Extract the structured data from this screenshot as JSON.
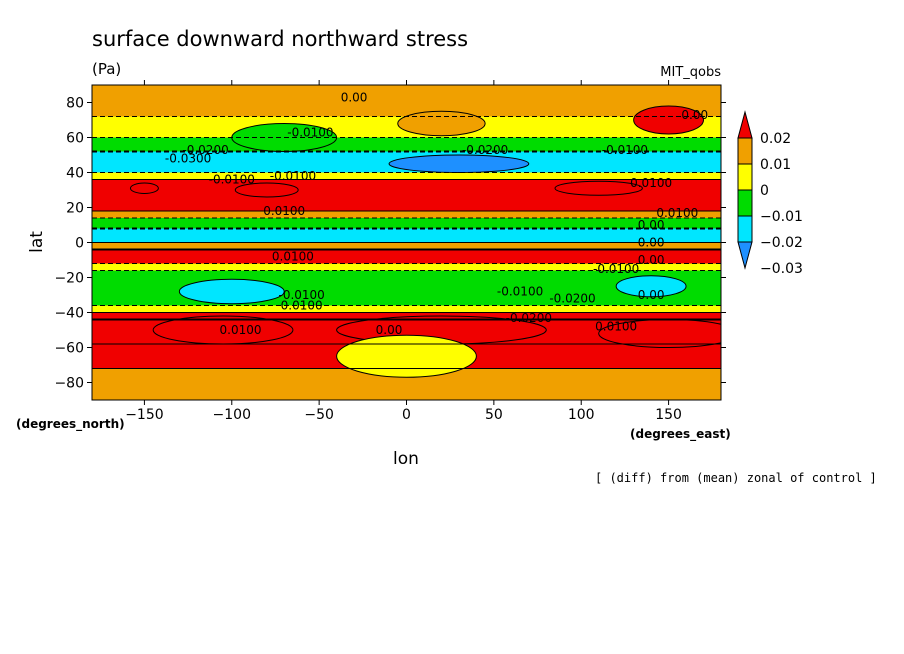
{
  "chart_data": {
    "type": "heatmap",
    "title": "surface downward northward stress",
    "units": "(Pa)",
    "model": "MIT_qobs",
    "xlabel": "lon",
    "ylabel": "lat",
    "x_unit_label": "(degrees_east)",
    "y_unit_label": "(degrees_north)",
    "footnote": "[ (diff) from (mean) zonal of control ]",
    "xlim": [
      -180,
      180
    ],
    "ylim": [
      -90,
      90
    ],
    "x_ticks": [
      -150,
      -100,
      -50,
      0,
      50,
      100,
      150
    ],
    "x_tick_labels": [
      "−150",
      "−100",
      "−50",
      "0",
      "50",
      "100",
      "150"
    ],
    "y_ticks": [
      -80,
      -60,
      -40,
      -20,
      0,
      20,
      40,
      60,
      80
    ],
    "y_tick_labels": [
      "−80",
      "−60",
      "−40",
      "−20",
      "0",
      "20",
      "40",
      "60",
      "80"
    ],
    "colorbar": {
      "levels": [
        0.02,
        0.01,
        0,
        -0.01,
        -0.02,
        -0.03
      ],
      "labels": [
        "0.02",
        "0.01",
        "0",
        "−0.01",
        "−0.02",
        "−0.03"
      ],
      "colors": [
        "#f00000",
        "#f0a000",
        "#ffff00",
        "#00dc00",
        "#00e6ff",
        "#1e90ff"
      ]
    },
    "zonal_bands": [
      {
        "lat": [
          -90,
          -72
        ],
        "value": 0.005
      },
      {
        "lat": [
          -72,
          -58
        ],
        "value": 0.015
      },
      {
        "lat": [
          -58,
          -44
        ],
        "value": 0.025
      },
      {
        "lat": [
          -44,
          -40
        ],
        "value": 0.015
      },
      {
        "lat": [
          -40,
          -36
        ],
        "value": -0.005
      },
      {
        "lat": [
          -36,
          -16
        ],
        "value": -0.015
      },
      {
        "lat": [
          -16,
          -12
        ],
        "value": -0.005
      },
      {
        "lat": [
          -12,
          -4
        ],
        "value": 0.025
      },
      {
        "lat": [
          -4,
          0
        ],
        "value": 0.005
      },
      {
        "lat": [
          0,
          8
        ],
        "value": -0.025
      },
      {
        "lat": [
          8,
          14
        ],
        "value": -0.015
      },
      {
        "lat": [
          14,
          18
        ],
        "value": 0.005
      },
      {
        "lat": [
          18,
          36
        ],
        "value": 0.015
      },
      {
        "lat": [
          36,
          40
        ],
        "value": -0.005
      },
      {
        "lat": [
          40,
          52
        ],
        "value": -0.025
      },
      {
        "lat": [
          52,
          60
        ],
        "value": -0.015
      },
      {
        "lat": [
          60,
          72
        ],
        "value": -0.005
      },
      {
        "lat": [
          72,
          90
        ],
        "value": 0.005
      }
    ],
    "anomalies": [
      {
        "lon": -105,
        "lat": -50,
        "rx": 40,
        "ry": 8,
        "value": 0.025
      },
      {
        "lon": 20,
        "lat": -50,
        "rx": 60,
        "ry": 8,
        "value": 0.025
      },
      {
        "lon": 150,
        "lat": -52,
        "rx": 40,
        "ry": 8,
        "value": 0.025
      },
      {
        "lon": -80,
        "lat": 30,
        "rx": 18,
        "ry": 4,
        "value": 0.025
      },
      {
        "lon": -150,
        "lat": 31,
        "rx": 8,
        "ry": 3,
        "value": 0.025
      },
      {
        "lon": 110,
        "lat": 31,
        "rx": 25,
        "ry": 4,
        "value": 0.025
      },
      {
        "lon": 30,
        "lat": 45,
        "rx": 40,
        "ry": 5,
        "value": -0.035
      },
      {
        "lon": -70,
        "lat": 60,
        "rx": 30,
        "ry": 8,
        "value": -0.015
      },
      {
        "lon": 20,
        "lat": 68,
        "rx": 25,
        "ry": 7,
        "value": 0.005
      },
      {
        "lon": 150,
        "lat": 70,
        "rx": 20,
        "ry": 8,
        "value": 0.015
      },
      {
        "lon": 0,
        "lat": -65,
        "rx": 40,
        "ry": 12,
        "value": -0.005
      },
      {
        "lon": -100,
        "lat": -28,
        "rx": 30,
        "ry": 7,
        "value": -0.025
      },
      {
        "lon": 140,
        "lat": -25,
        "rx": 20,
        "ry": 6,
        "value": -0.025
      }
    ],
    "contour_labels": [
      {
        "text": "0.00",
        "lon": -30,
        "lat": 83
      },
      {
        "text": "-0.0100",
        "lon": -55,
        "lat": 63
      },
      {
        "text": "-0.0200",
        "lon": -115,
        "lat": 53
      },
      {
        "text": "-0.0300",
        "lon": -125,
        "lat": 48
      },
      {
        "text": "-0.0200",
        "lon": 45,
        "lat": 53
      },
      {
        "text": "-0.0100",
        "lon": 125,
        "lat": 53
      },
      {
        "text": "0.00",
        "lon": 165,
        "lat": 73
      },
      {
        "text": "-0.0100",
        "lon": -100,
        "lat": 36
      },
      {
        "text": "-0.0100",
        "lon": -65,
        "lat": 38
      },
      {
        "text": "0.0100",
        "lon": 140,
        "lat": 34
      },
      {
        "text": "0.0100",
        "lon": -70,
        "lat": 18
      },
      {
        "text": "0.0100",
        "lon": 155,
        "lat": 17
      },
      {
        "text": "0.00",
        "lon": 140,
        "lat": 10
      },
      {
        "text": "0.00",
        "lon": 140,
        "lat": 0
      },
      {
        "text": "0.0100",
        "lon": -65,
        "lat": -8
      },
      {
        "text": "0.00",
        "lon": 140,
        "lat": -10
      },
      {
        "text": "-0.0100",
        "lon": 120,
        "lat": -15
      },
      {
        "text": "-0.0100",
        "lon": -60,
        "lat": -30
      },
      {
        "text": "0.0100",
        "lon": -60,
        "lat": -36
      },
      {
        "text": "-0.0100",
        "lon": 65,
        "lat": -28
      },
      {
        "text": "-0.0200",
        "lon": 95,
        "lat": -32
      },
      {
        "text": "-0.0200",
        "lon": 70,
        "lat": -43
      },
      {
        "text": "0.00",
        "lon": 140,
        "lat": -30
      },
      {
        "text": "0.0100",
        "lon": -95,
        "lat": -50
      },
      {
        "text": "0.00",
        "lon": -10,
        "lat": -50
      },
      {
        "text": "0.0100",
        "lon": 120,
        "lat": -48
      }
    ]
  }
}
